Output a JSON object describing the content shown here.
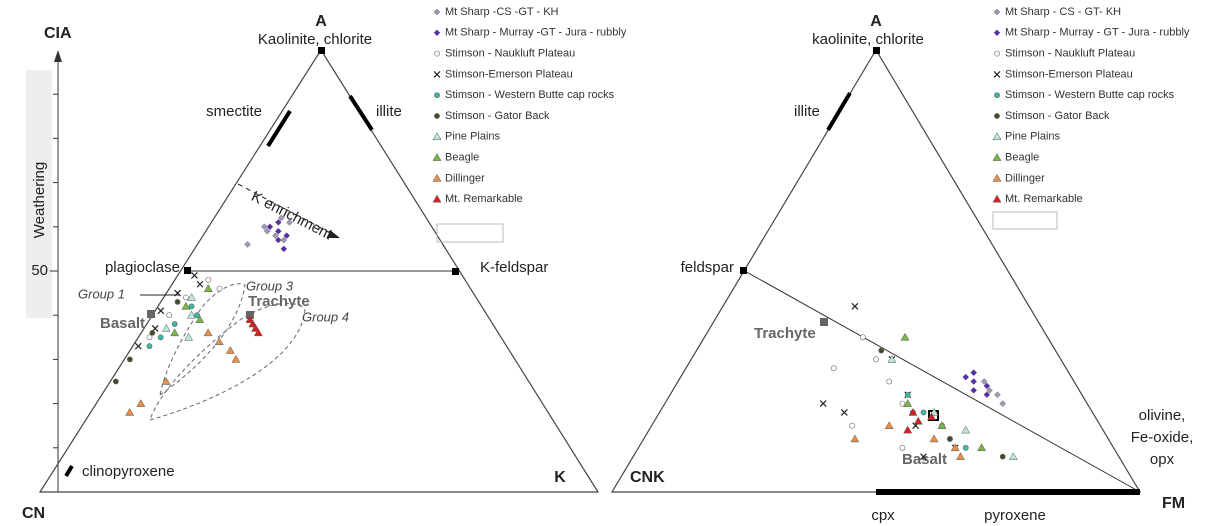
{
  "chart_data": [
    {
      "type": "ternary",
      "corners": {
        "top": "A",
        "left": "CN",
        "right": "K"
      },
      "axis_label": "CIA",
      "axis_title": "Weathering",
      "ylim": [
        0,
        100
      ],
      "yticks": [
        50
      ],
      "annotations": [
        "Kaolinite, chlorite",
        "smectite",
        "illite",
        "K enrichment",
        "plagioclase",
        "K-feldspar",
        "Group 1",
        "Group 3",
        "Trachyte",
        "Group 4",
        "Basalt",
        "clinopyroxene"
      ],
      "series": [
        {
          "name": "Mt Sharp -CS -GT - KH",
          "color": "#9a9ab8",
          "marker": "diamond",
          "a": [
            60,
            58,
            62,
            57,
            59,
            61,
            56
          ],
          "k": [
            10,
            13,
            12,
            15,
            11,
            14,
            9
          ]
        },
        {
          "name": "Mt Sharp - Murray -GT - Jura - rubbly",
          "color": "#5a2bb0",
          "marker": "diamond",
          "a": [
            59,
            57,
            60,
            55,
            58,
            61
          ],
          "k": [
            13,
            14,
            11,
            16,
            15,
            12
          ]
        },
        {
          "name": "Stimson - Naukluft Plateau",
          "color": "#ffffff",
          "marker": "circle",
          "a": [
            48,
            44,
            40,
            46,
            35
          ],
          "k": [
            6,
            4,
            3,
            9,
            2
          ]
        },
        {
          "name": "Stimson-Emerson Plateau",
          "color": "#222222",
          "marker": "x",
          "a": [
            49,
            45,
            41,
            37,
            33,
            47
          ],
          "k": [
            3,
            2,
            1,
            2,
            1,
            5
          ]
        },
        {
          "name": "Stimson - Western Butte cap rocks",
          "color": "#3bb8a8",
          "marker": "circle",
          "a": [
            42,
            38,
            35,
            40,
            33
          ],
          "k": [
            6,
            5,
            4,
            8,
            3
          ]
        },
        {
          "name": "Stimson - Gator Back",
          "color": "#4a4a2a",
          "marker": "circle",
          "a": [
            43,
            36,
            30,
            25
          ],
          "k": [
            3,
            2,
            1,
            1
          ]
        },
        {
          "name": "Pine Plains",
          "color": "#b8e8d8",
          "marker": "triangle",
          "a": [
            44,
            40,
            37,
            35
          ],
          "k": [
            5,
            7,
            4,
            9
          ]
        },
        {
          "name": "Beagle",
          "color": "#7ab648",
          "marker": "triangle",
          "a": [
            46,
            42,
            39,
            36
          ],
          "k": [
            7,
            5,
            9,
            6
          ]
        },
        {
          "name": "Dillinger",
          "color": "#e8904a",
          "marker": "triangle",
          "a": [
            36,
            34,
            32,
            30,
            25,
            20,
            18
          ],
          "k": [
            12,
            15,
            18,
            20,
            10,
            8,
            7
          ]
        },
        {
          "name": "Mt. Remarkable",
          "color": "#d42020",
          "marker": "triangle",
          "a": [
            38,
            37,
            36,
            39
          ],
          "k": [
            19,
            20,
            21,
            18
          ]
        }
      ]
    },
    {
      "type": "ternary",
      "corners": {
        "top": "A",
        "left": "CNK",
        "right": "FM"
      },
      "annotations": [
        "kaolinite, chlorite",
        "illite",
        "feldspar",
        "Trachyte",
        "Basalt",
        "olivine,",
        "Fe-oxide,",
        "opx",
        "cpx",
        "pyroxene"
      ],
      "series": [
        {
          "name": "Mt Sharp - CS - GT- KH",
          "color": "#9a9ab8",
          "marker": "diamond",
          "a": [
            27,
            25,
            23,
            22,
            20
          ],
          "fm": [
            55,
            58,
            60,
            62,
            64
          ]
        },
        {
          "name": "Mt Sharp - Murray - GT - Jura - rubbly",
          "color": "#5a2bb0",
          "marker": "diamond",
          "a": [
            26,
            25,
            23,
            24,
            22,
            27
          ],
          "fm": [
            54,
            56,
            57,
            59,
            60,
            55
          ]
        },
        {
          "name": "Stimson - Naukluft Plateau",
          "color": "#ffffff",
          "marker": "circle",
          "a": [
            35,
            30,
            25,
            20,
            15,
            10,
            28
          ],
          "fm": [
            30,
            35,
            40,
            45,
            38,
            50,
            28
          ]
        },
        {
          "name": "Stimson-Emerson Plateau",
          "color": "#222222",
          "marker": "x",
          "a": [
            42,
            30,
            22,
            18,
            15,
            10,
            20,
            8
          ],
          "fm": [
            25,
            38,
            45,
            35,
            50,
            60,
            30,
            55
          ]
        },
        {
          "name": "Stimson - Western Butte cap rocks",
          "color": "#3bb8a8",
          "marker": "circle",
          "a": [
            22,
            18,
            15,
            12,
            10
          ],
          "fm": [
            45,
            50,
            55,
            58,
            62
          ]
        },
        {
          "name": "Stimson - Gator Back",
          "color": "#4a4a2a",
          "marker": "circle",
          "a": [
            32,
            18,
            12,
            8
          ],
          "fm": [
            35,
            48,
            58,
            70
          ]
        },
        {
          "name": "Pine Plains",
          "color": "#b8e8d8",
          "marker": "triangle",
          "a": [
            30,
            18,
            14,
            8
          ],
          "fm": [
            38,
            52,
            60,
            72
          ]
        },
        {
          "name": "Beagle",
          "color": "#7ab648",
          "marker": "triangle",
          "a": [
            35,
            20,
            15,
            10
          ],
          "fm": [
            38,
            46,
            55,
            65
          ]
        },
        {
          "name": "Dillinger",
          "color": "#e8904a",
          "marker": "triangle",
          "a": [
            15,
            12,
            10,
            8,
            12
          ],
          "fm": [
            45,
            55,
            60,
            62,
            40
          ]
        },
        {
          "name": "Mt. Remarkable",
          "color": "#d42020",
          "marker": "triangle",
          "a": [
            18,
            16,
            17,
            14
          ],
          "fm": [
            48,
            50,
            52,
            49
          ]
        }
      ]
    }
  ]
}
